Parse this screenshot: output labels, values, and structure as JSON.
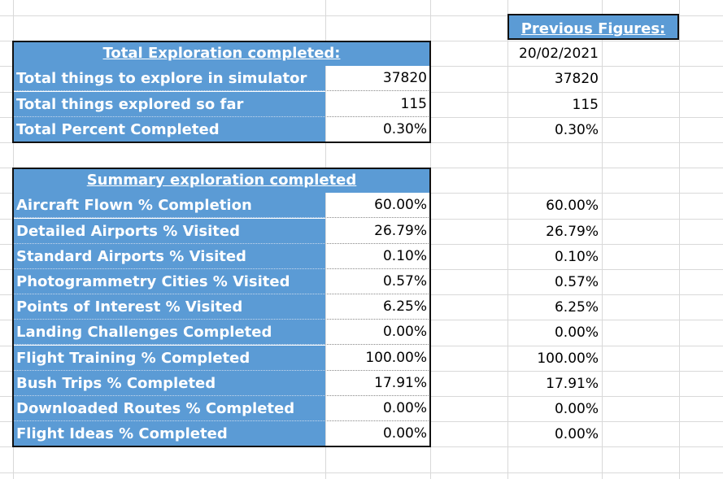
{
  "total_exploration": {
    "title": "Total Exploration completed:",
    "rows": [
      {
        "label": "Total things to explore in simulator",
        "value": "37820"
      },
      {
        "label": "Total things explored so far",
        "value": "115"
      },
      {
        "label": "Total Percent Completed",
        "value": "0.30%"
      }
    ]
  },
  "summary_exploration": {
    "title": "Summary exploration completed",
    "rows": [
      {
        "label": "Aircraft Flown % Completion",
        "value": "60.00%"
      },
      {
        "label": "Detailed Airports % Visited",
        "value": "26.79%"
      },
      {
        "label": "Standard Airports % Visited",
        "value": "0.10%"
      },
      {
        "label": "Photogrammetry Cities % Visited",
        "value": "0.57%"
      },
      {
        "label": "Points of Interest % Visited",
        "value": "6.25%"
      },
      {
        "label": "Landing Challenges Completed",
        "value": "0.00%"
      },
      {
        "label": "Flight Training % Completed",
        "value": "100.00%"
      },
      {
        "label": "Bush Trips % Completed",
        "value": "17.91%"
      },
      {
        "label": "Downloaded Routes % Completed",
        "value": "0.00%"
      },
      {
        "label": "Flight Ideas % Completed",
        "value": "0.00%"
      }
    ]
  },
  "previous_figures": {
    "title": "Previous Figures:",
    "date": "20/02/2021",
    "total_values": [
      "37820",
      "115",
      "0.30%"
    ],
    "summary_values": [
      "60.00%",
      "26.79%",
      "0.10%",
      "0.57%",
      "6.25%",
      "0.00%",
      "100.00%",
      "17.91%",
      "0.00%",
      "0.00%"
    ]
  }
}
